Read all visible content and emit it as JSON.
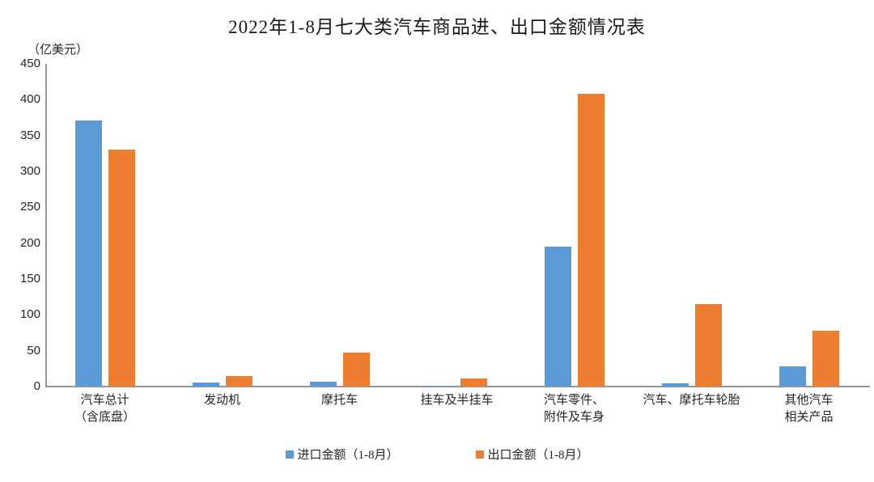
{
  "chart_data": {
    "type": "bar",
    "title": "2022年1-8月七大类汽车商品进、出口金额情况表",
    "unit_label": "（亿美元）",
    "categories": [
      "汽车总计（含底盘）",
      "发动机",
      "摩托车",
      "挂车及半挂车",
      "汽车零件、附件及车身",
      "汽车、摩托车轮胎",
      "其他汽车相关产品"
    ],
    "category_label_lines": [
      [
        "汽车总计",
        "（含底盘）"
      ],
      [
        "发动机"
      ],
      [
        "摩托车"
      ],
      [
        "挂车及半挂车"
      ],
      [
        "汽车零件、",
        "附件及车身"
      ],
      [
        "汽车、摩托车轮胎"
      ],
      [
        "其他汽车",
        "相关产品"
      ]
    ],
    "series": [
      {
        "name": "进口金额（1-8月）",
        "color": "#5B9BD5",
        "values": [
          371,
          6,
          7,
          0.4,
          195,
          4,
          28
        ]
      },
      {
        "name": "出口金额（1-8月）",
        "color": "#ED7D31",
        "values": [
          331,
          15,
          47,
          11,
          408,
          115,
          78
        ]
      }
    ],
    "ylim": [
      0,
      450
    ],
    "yticks": [
      0,
      50,
      100,
      150,
      200,
      250,
      300,
      350,
      400,
      450
    ],
    "grid": false,
    "legend_position": "bottom",
    "axis_color": "#969696"
  }
}
